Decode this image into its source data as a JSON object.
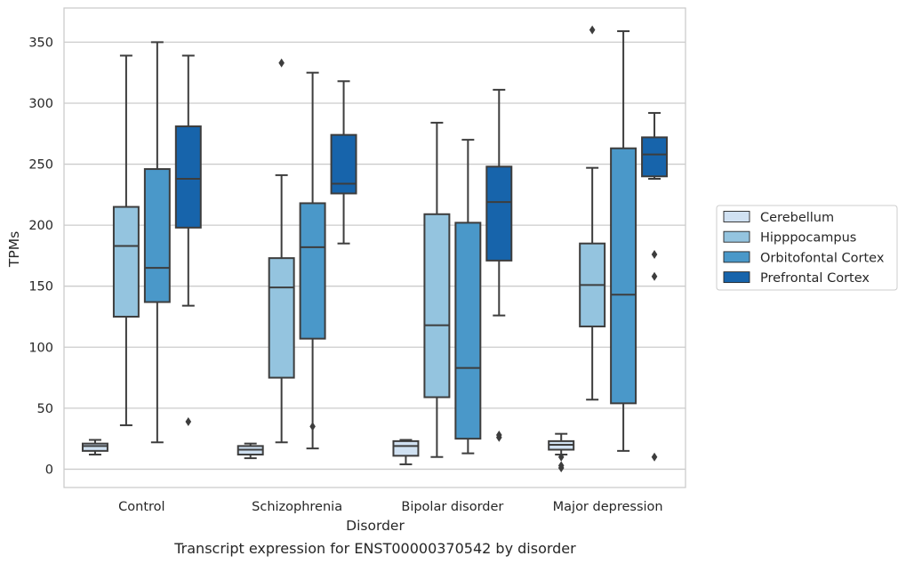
{
  "caption": "Transcript expression for ENST00000370542 by disorder",
  "chart_data": {
    "type": "box",
    "xlabel": "Disorder",
    "ylabel": "TPMs",
    "ylim": [
      -15,
      378
    ],
    "yticks": [
      0,
      50,
      100,
      150,
      200,
      250,
      300,
      350
    ],
    "grid": "horizontal",
    "legend_position": "right",
    "categories": [
      "Control",
      "Schizophrenia",
      "Bipolar disorder",
      "Major depression"
    ],
    "series": [
      {
        "name": "Cerebellum",
        "color": "#d0e1f2",
        "boxes": [
          {
            "whisker_low": 12,
            "q1": 15,
            "median": 19,
            "q3": 21,
            "whisker_high": 24,
            "outliers": []
          },
          {
            "whisker_low": 9,
            "q1": 12,
            "median": 16,
            "q3": 19,
            "whisker_high": 21,
            "outliers": []
          },
          {
            "whisker_low": 4,
            "q1": 11,
            "median": 19,
            "q3": 23,
            "whisker_high": 24,
            "outliers": []
          },
          {
            "whisker_low": 12,
            "q1": 16,
            "median": 20,
            "q3": 23,
            "whisker_high": 29,
            "outliers": [
              1,
              3,
              10
            ]
          }
        ]
      },
      {
        "name": "Hipppocampus",
        "color": "#94c4df",
        "boxes": [
          {
            "whisker_low": 36,
            "q1": 125,
            "median": 183,
            "q3": 215,
            "whisker_high": 339,
            "outliers": []
          },
          {
            "whisker_low": 22,
            "q1": 75,
            "median": 149,
            "q3": 173,
            "whisker_high": 241,
            "outliers": [
              333
            ]
          },
          {
            "whisker_low": 10,
            "q1": 59,
            "median": 118,
            "q3": 209,
            "whisker_high": 284,
            "outliers": []
          },
          {
            "whisker_low": 57,
            "q1": 117,
            "median": 151,
            "q3": 185,
            "whisker_high": 247,
            "outliers": [
              360
            ]
          }
        ]
      },
      {
        "name": "Orbitofontal Cortex",
        "color": "#4a98c9",
        "boxes": [
          {
            "whisker_low": 22,
            "q1": 137,
            "median": 165,
            "q3": 246,
            "whisker_high": 350,
            "outliers": []
          },
          {
            "whisker_low": 17,
            "q1": 107,
            "median": 182,
            "q3": 218,
            "whisker_high": 325,
            "outliers": [
              35
            ]
          },
          {
            "whisker_low": 13,
            "q1": 25,
            "median": 83,
            "q3": 202,
            "whisker_high": 270,
            "outliers": []
          },
          {
            "whisker_low": 15,
            "q1": 54,
            "median": 143,
            "q3": 263,
            "whisker_high": 359,
            "outliers": []
          }
        ]
      },
      {
        "name": "Prefrontal Cortex",
        "color": "#1764ab",
        "boxes": [
          {
            "whisker_low": 134,
            "q1": 198,
            "median": 238,
            "q3": 281,
            "whisker_high": 339,
            "outliers": [
              39
            ]
          },
          {
            "whisker_low": 185,
            "q1": 226,
            "median": 234,
            "q3": 274,
            "whisker_high": 318,
            "outliers": []
          },
          {
            "whisker_low": 126,
            "q1": 171,
            "median": 219,
            "q3": 248,
            "whisker_high": 311,
            "outliers": [
              26,
              28
            ]
          },
          {
            "whisker_low": 238,
            "q1": 240,
            "median": 258,
            "q3": 272,
            "whisker_high": 292,
            "outliers": [
              10,
              158,
              176
            ]
          }
        ]
      }
    ]
  }
}
